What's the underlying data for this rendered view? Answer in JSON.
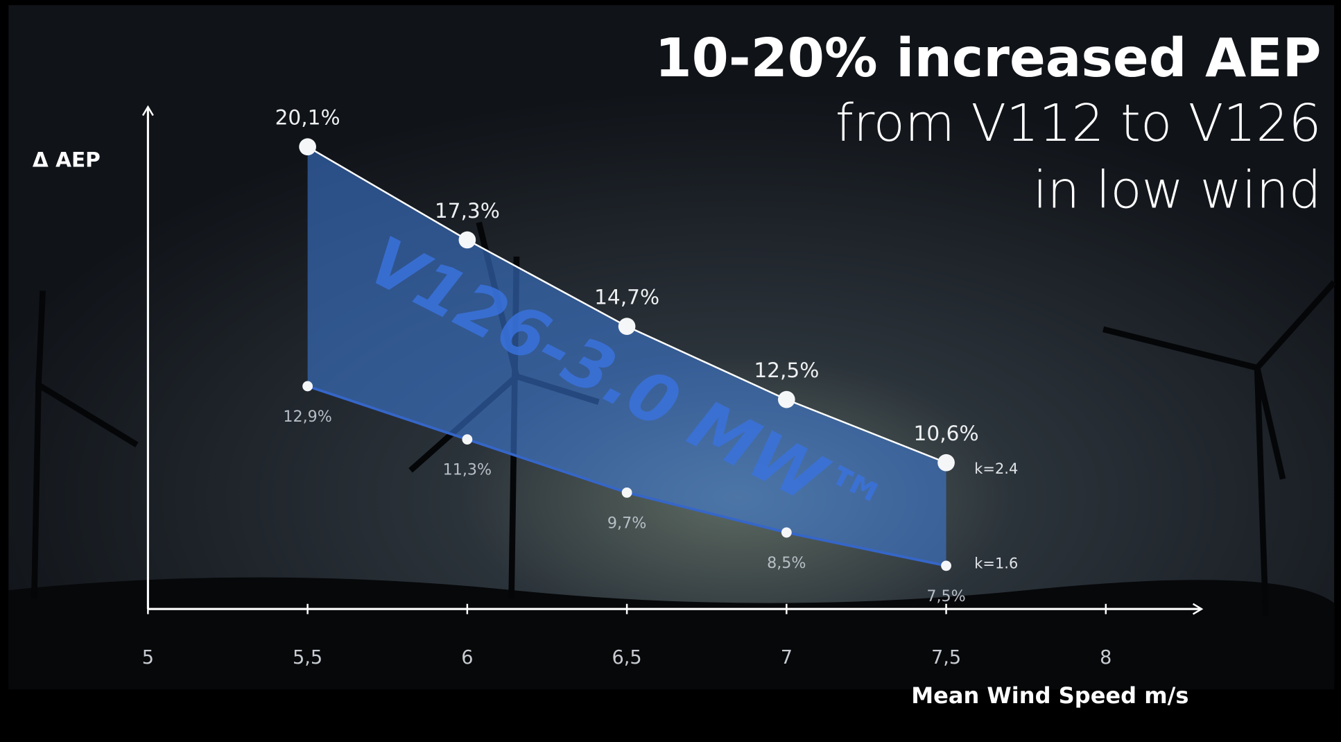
{
  "chart_data": {
    "type": "line",
    "title": "10-20% increased AEP",
    "subtitle": [
      "from V112 to V126",
      "in low wind"
    ],
    "y_label": "Δ AEP",
    "x_label": "Mean Wind Speed  m/s",
    "annotation": "V126-3.0 MW™",
    "x": [
      5.5,
      6,
      6.5,
      7,
      7.5
    ],
    "xlim": [
      5,
      8.3
    ],
    "xticks": [
      5,
      {
        "value": 5.5,
        "label": "5,5"
      },
      6,
      {
        "value": 6.5,
        "label": "6,5"
      },
      7,
      {
        "value": 7.5,
        "label": "7,5"
      },
      8
    ],
    "ylim": [
      6.2,
      21.3
    ],
    "band_color": "#3f7fe0",
    "series": [
      {
        "name": "k=2.4",
        "color": "#ffffff",
        "values": [
          20.1,
          17.3,
          14.7,
          12.5,
          10.6
        ],
        "value_labels": [
          "20,1%",
          "17,3%",
          "14,7%",
          "12,5%",
          "10,6%"
        ]
      },
      {
        "name": "k=1.6",
        "color": "#3566c9",
        "values": [
          12.9,
          11.3,
          9.7,
          8.5,
          7.5
        ],
        "value_labels": [
          "12,9%",
          "11,3%",
          "9,7%",
          "8,5%",
          "7,5%"
        ]
      }
    ]
  }
}
